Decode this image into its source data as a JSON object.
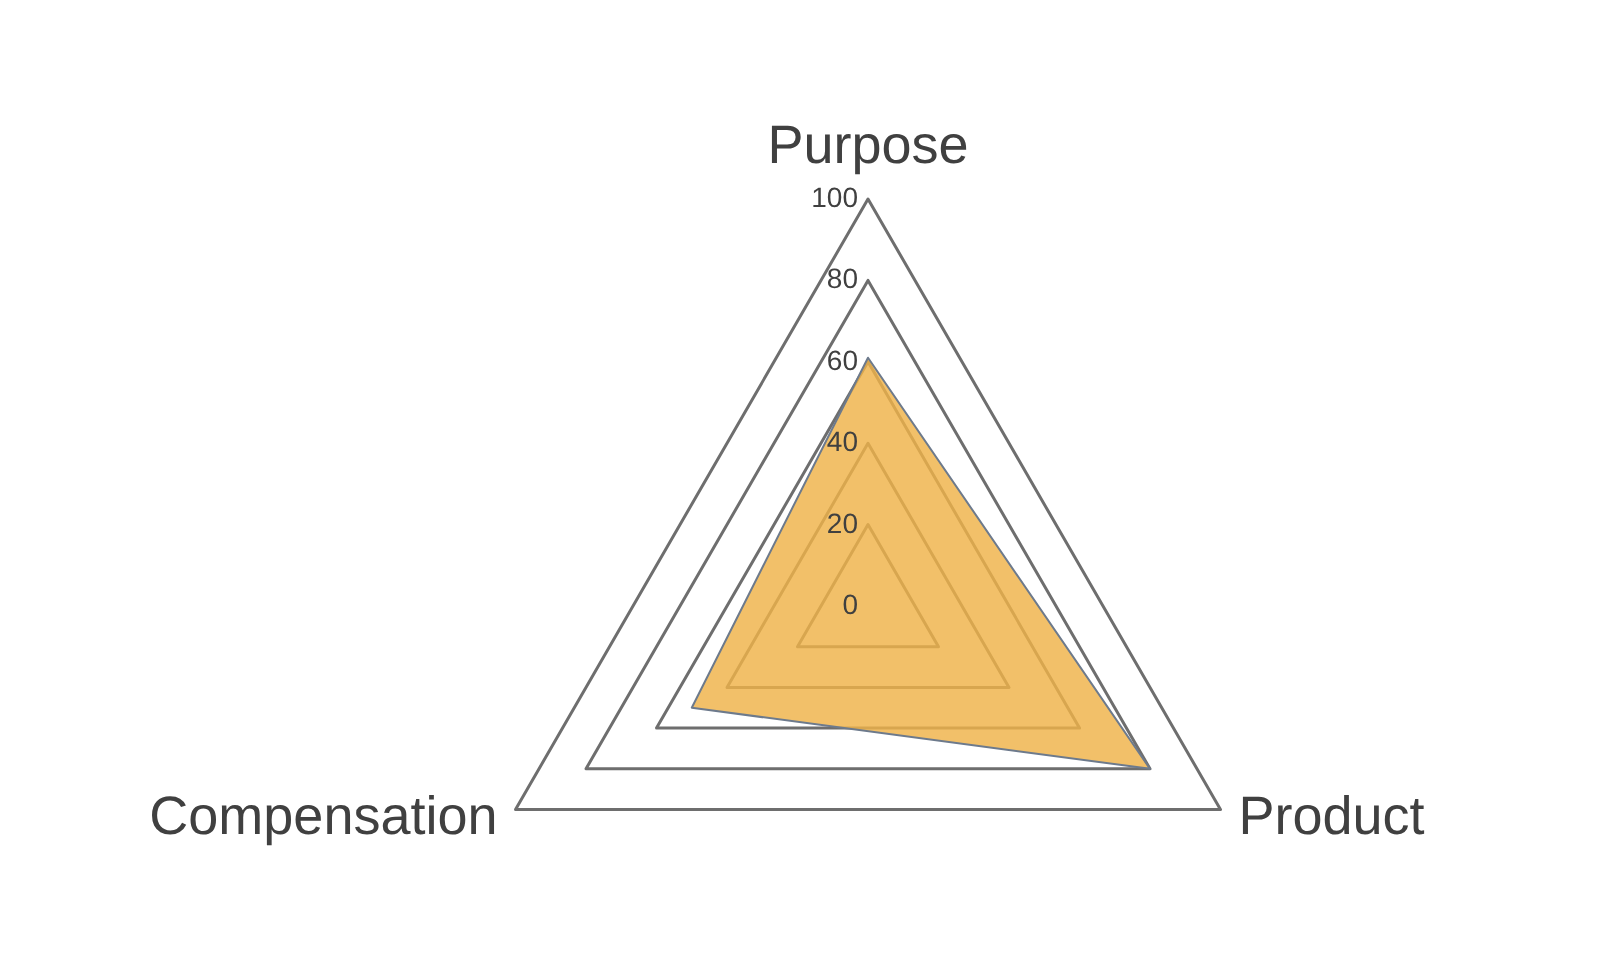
{
  "chart_data": {
    "type": "radar",
    "categories": [
      "Purpose",
      "Product",
      "Compensation"
    ],
    "series": [
      {
        "color": "#f2c069",
        "values": [
          61,
          80,
          50
        ]
      }
    ],
    "ylim": [
      0,
      100
    ],
    "yticks": [
      0,
      20,
      40,
      60,
      80,
      100
    ],
    "grid": true
  }
}
